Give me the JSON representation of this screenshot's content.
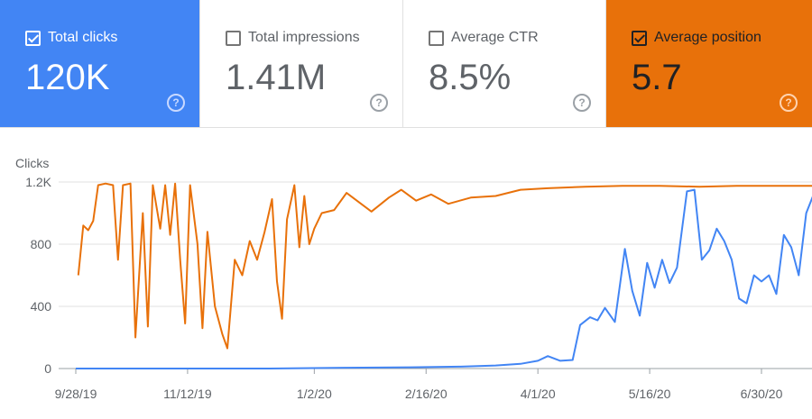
{
  "metrics": [
    {
      "label": "Total clicks",
      "value": "120K",
      "checked": true,
      "color": "#4285f4"
    },
    {
      "label": "Total impressions",
      "value": "1.41M",
      "checked": false,
      "color": "#ffffff"
    },
    {
      "label": "Average CTR",
      "value": "8.5%",
      "checked": false,
      "color": "#ffffff"
    },
    {
      "label": "Average position",
      "value": "5.7",
      "checked": true,
      "color": "#e8710a"
    }
  ],
  "help_glyph": "?",
  "chart_data": {
    "type": "line",
    "ylabel": "Clicks",
    "y_ticks": [
      "0",
      "400",
      "800",
      "1.2K"
    ],
    "y_tick_values": [
      0,
      400,
      800,
      1200
    ],
    "ylim": [
      0,
      1200
    ],
    "x_ticks": [
      "9/28/19",
      "11/12/19",
      "1/2/20",
      "2/16/20",
      "4/1/20",
      "5/16/20",
      "6/30/20"
    ],
    "x_tick_dates": [
      "2019-09-28",
      "2019-11-12",
      "2020-01-02",
      "2020-02-16",
      "2020-04-01",
      "2020-05-16",
      "2020-06-30"
    ],
    "x_range": [
      "2019-09-28",
      "2020-07-24"
    ],
    "grid": "horizontal",
    "series": [
      {
        "name": "Clicks",
        "color": "#4285f4",
        "points": [
          [
            "2019-09-28",
            0
          ],
          [
            "2019-11-01",
            0
          ],
          [
            "2019-12-15",
            0
          ],
          [
            "2020-01-15",
            5
          ],
          [
            "2020-02-10",
            8
          ],
          [
            "2020-03-01",
            12
          ],
          [
            "2020-03-15",
            20
          ],
          [
            "2020-03-25",
            30
          ],
          [
            "2020-04-01",
            50
          ],
          [
            "2020-04-05",
            80
          ],
          [
            "2020-04-10",
            50
          ],
          [
            "2020-04-15",
            55
          ],
          [
            "2020-04-18",
            280
          ],
          [
            "2020-04-22",
            330
          ],
          [
            "2020-04-25",
            310
          ],
          [
            "2020-04-28",
            390
          ],
          [
            "2020-05-02",
            300
          ],
          [
            "2020-05-06",
            770
          ],
          [
            "2020-05-09",
            500
          ],
          [
            "2020-05-12",
            340
          ],
          [
            "2020-05-15",
            680
          ],
          [
            "2020-05-18",
            520
          ],
          [
            "2020-05-21",
            700
          ],
          [
            "2020-05-24",
            550
          ],
          [
            "2020-05-27",
            650
          ],
          [
            "2020-05-31",
            1140
          ],
          [
            "2020-06-03",
            1150
          ],
          [
            "2020-06-06",
            700
          ],
          [
            "2020-06-09",
            760
          ],
          [
            "2020-06-12",
            900
          ],
          [
            "2020-06-15",
            820
          ],
          [
            "2020-06-18",
            700
          ],
          [
            "2020-06-21",
            450
          ],
          [
            "2020-06-24",
            420
          ],
          [
            "2020-06-27",
            600
          ],
          [
            "2020-06-30",
            560
          ],
          [
            "2020-07-03",
            600
          ],
          [
            "2020-07-06",
            480
          ],
          [
            "2020-07-09",
            860
          ],
          [
            "2020-07-12",
            780
          ],
          [
            "2020-07-15",
            600
          ],
          [
            "2020-07-18",
            1000
          ],
          [
            "2020-07-21",
            1120
          ],
          [
            "2020-07-24",
            1110
          ]
        ]
      },
      {
        "name": "Average position",
        "color": "#e8710a",
        "points": [
          [
            "2019-09-29",
            600
          ],
          [
            "2019-10-01",
            920
          ],
          [
            "2019-10-03",
            890
          ],
          [
            "2019-10-05",
            950
          ],
          [
            "2019-10-07",
            1180
          ],
          [
            "2019-10-10",
            1190
          ],
          [
            "2019-10-13",
            1180
          ],
          [
            "2019-10-15",
            700
          ],
          [
            "2019-10-17",
            1180
          ],
          [
            "2019-10-20",
            1190
          ],
          [
            "2019-10-22",
            200
          ],
          [
            "2019-10-25",
            1000
          ],
          [
            "2019-10-27",
            270
          ],
          [
            "2019-10-29",
            1180
          ],
          [
            "2019-11-01",
            900
          ],
          [
            "2019-11-03",
            1180
          ],
          [
            "2019-11-05",
            860
          ],
          [
            "2019-11-07",
            1190
          ],
          [
            "2019-11-09",
            700
          ],
          [
            "2019-11-11",
            290
          ],
          [
            "2019-11-13",
            1180
          ],
          [
            "2019-11-16",
            800
          ],
          [
            "2019-11-18",
            260
          ],
          [
            "2019-11-20",
            880
          ],
          [
            "2019-11-23",
            400
          ],
          [
            "2019-11-26",
            220
          ],
          [
            "2019-11-28",
            130
          ],
          [
            "2019-12-01",
            700
          ],
          [
            "2019-12-04",
            600
          ],
          [
            "2019-12-07",
            820
          ],
          [
            "2019-12-10",
            700
          ],
          [
            "2019-12-13",
            880
          ],
          [
            "2019-12-16",
            1090
          ],
          [
            "2019-12-18",
            560
          ],
          [
            "2019-12-20",
            320
          ],
          [
            "2019-12-22",
            960
          ],
          [
            "2019-12-25",
            1180
          ],
          [
            "2019-12-27",
            780
          ],
          [
            "2019-12-29",
            1110
          ],
          [
            "2019-12-31",
            800
          ],
          [
            "2020-01-02",
            900
          ],
          [
            "2020-01-05",
            1000
          ],
          [
            "2020-01-10",
            1020
          ],
          [
            "2020-01-15",
            1130
          ],
          [
            "2020-01-20",
            1070
          ],
          [
            "2020-01-25",
            1010
          ],
          [
            "2020-02-01",
            1100
          ],
          [
            "2020-02-06",
            1150
          ],
          [
            "2020-02-12",
            1080
          ],
          [
            "2020-02-18",
            1120
          ],
          [
            "2020-02-25",
            1060
          ],
          [
            "2020-03-05",
            1100
          ],
          [
            "2020-03-15",
            1110
          ],
          [
            "2020-03-25",
            1150
          ],
          [
            "2020-04-05",
            1160
          ],
          [
            "2020-04-20",
            1170
          ],
          [
            "2020-05-05",
            1175
          ],
          [
            "2020-05-20",
            1175
          ],
          [
            "2020-06-05",
            1170
          ],
          [
            "2020-06-20",
            1175
          ],
          [
            "2020-07-05",
            1175
          ],
          [
            "2020-07-24",
            1175
          ]
        ]
      }
    ]
  }
}
